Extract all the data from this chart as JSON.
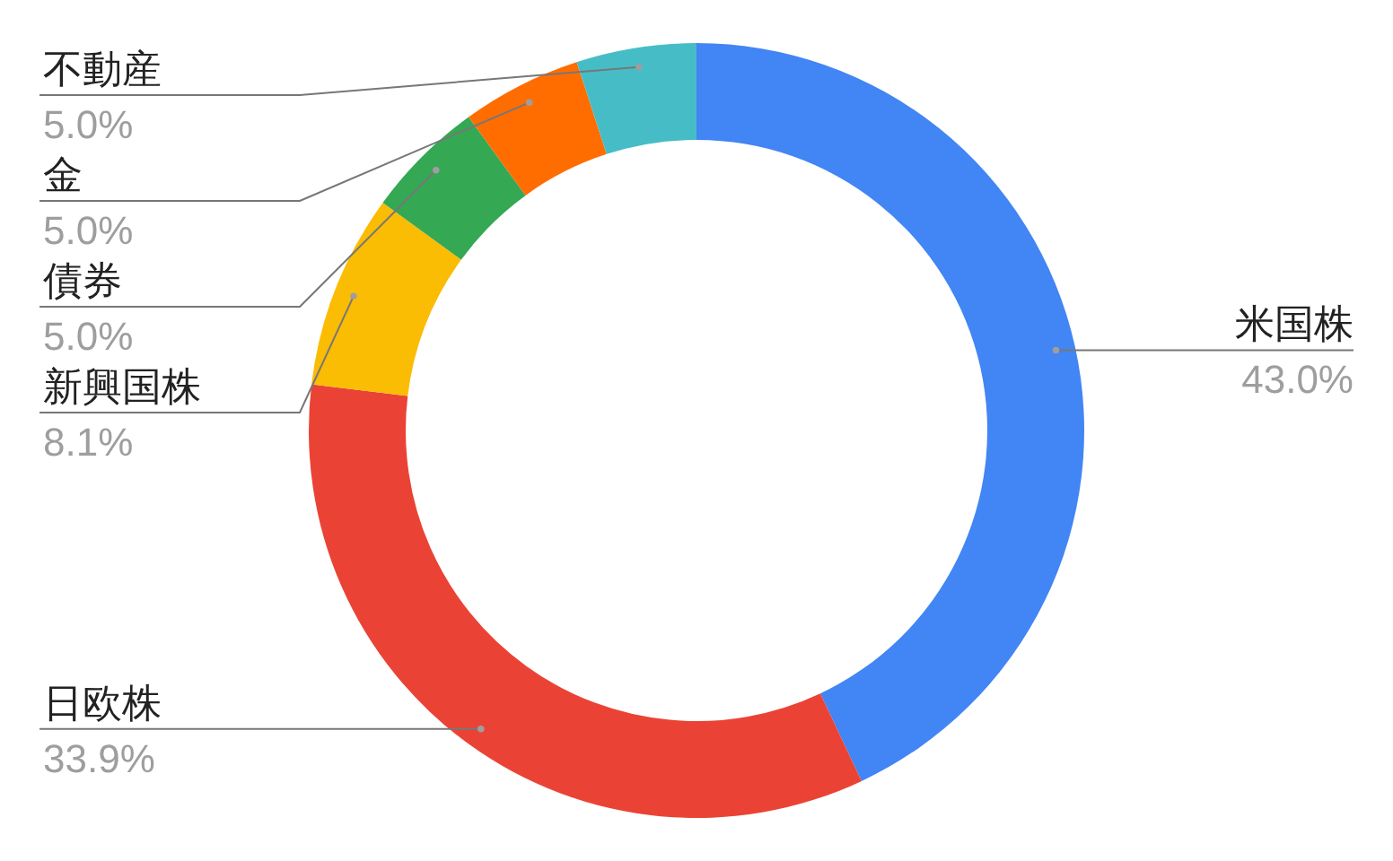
{
  "chart_data": {
    "type": "donut",
    "categories": [
      "米国株",
      "日欧株",
      "新興国株",
      "債券",
      "金",
      "不動産"
    ],
    "values": [
      43.0,
      33.9,
      8.1,
      5.0,
      5.0,
      5.0
    ],
    "colors": [
      "#4285f4",
      "#ea4335",
      "#fbbc04",
      "#34a853",
      "#ff6d01",
      "#46bdc6"
    ],
    "value_labels": [
      "43.0%",
      "33.9%",
      "8.1%",
      "5.0%",
      "5.0%",
      "5.0%"
    ]
  }
}
